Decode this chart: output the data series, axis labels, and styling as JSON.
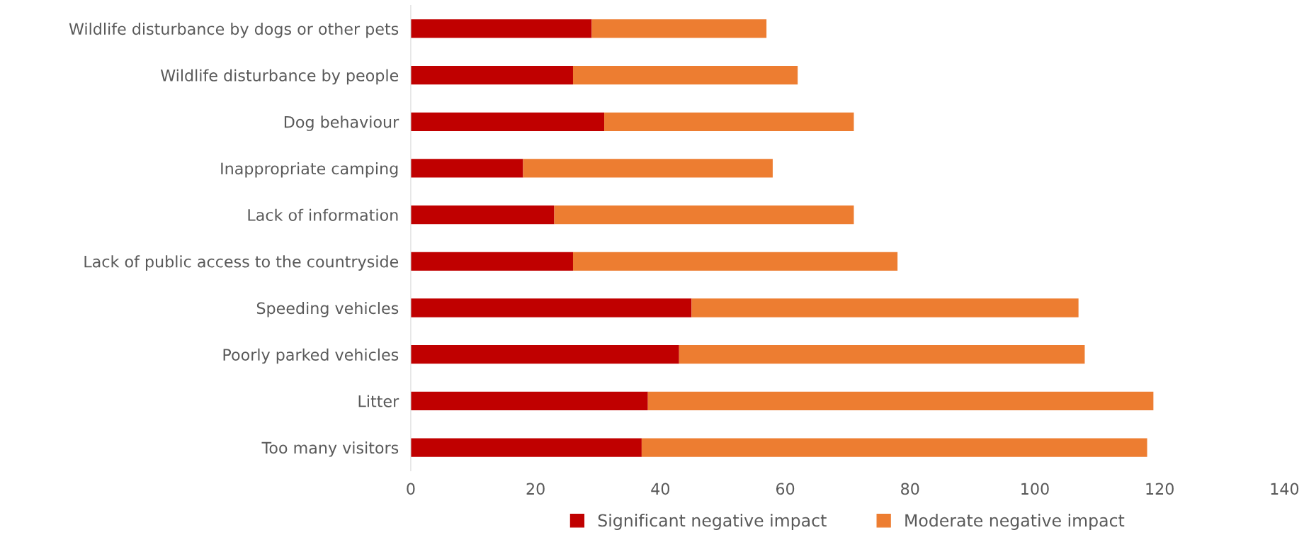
{
  "chart_data": {
    "type": "bar",
    "orientation": "horizontal",
    "stacked": true,
    "categories": [
      "Wildlife disturbance by dogs or other pets",
      "Wildlife disturbance by people",
      "Dog behaviour",
      "Inappropriate camping",
      "Lack of information",
      "Lack of public access to the countryside",
      "Speeding vehicles",
      "Poorly parked vehicles",
      "Litter",
      "Too many visitors"
    ],
    "series": [
      {
        "name": "Significant negative impact",
        "color": "#c00000",
        "values": [
          29,
          26,
          31,
          18,
          23,
          26,
          45,
          43,
          38,
          37
        ]
      },
      {
        "name": "Moderate negative impact",
        "color": "#ed7d31",
        "values": [
          28,
          36,
          40,
          40,
          48,
          52,
          62,
          65,
          81,
          81
        ]
      }
    ],
    "xlim": [
      0,
      140
    ],
    "xticks": [
      0,
      20,
      40,
      60,
      80,
      100,
      120,
      140
    ],
    "grid": false,
    "legend": "bottom"
  }
}
